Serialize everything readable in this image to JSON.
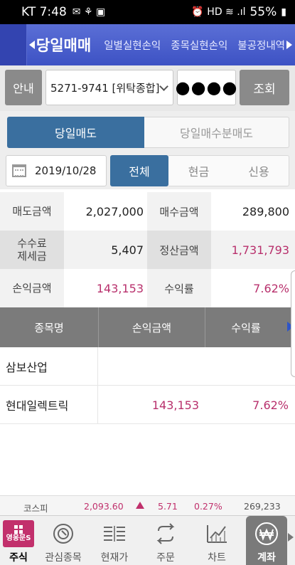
{
  "status_bar": {
    "carrier_time": "KT 7:48",
    "battery": "55%"
  },
  "header": {
    "tabs": [
      {
        "label": "당일매매",
        "active": true
      },
      {
        "label": "일별실현손익",
        "active": false
      },
      {
        "label": "종목실현손익",
        "active": false
      },
      {
        "label": "불공정내역",
        "active": false
      }
    ]
  },
  "account": {
    "guide_label": "안내",
    "account_value": "5271-9741 [위탁종합]",
    "password_mask": "●●●●",
    "query_label": "조회"
  },
  "sell_tabs": {
    "active": "당일매도",
    "inactive": "당일매수분매도"
  },
  "filter": {
    "date": "2019/10/28",
    "types": [
      "전체",
      "현금",
      "신용"
    ],
    "selected_type": "전체"
  },
  "summary": {
    "sell_amount_label": "매도금액",
    "sell_amount": "2,027,000",
    "buy_amount_label": "매수금액",
    "buy_amount": "289,800",
    "fee_tax_label": "수수료\n제세금",
    "fee_tax": "5,407",
    "settle_amount_label": "정산금액",
    "settle_amount": "1,731,793",
    "pnl_amount_label": "손익금액",
    "pnl_amount": "143,153",
    "return_rate_label": "수익률",
    "return_rate": "7.62%"
  },
  "table": {
    "headers": [
      "종목명",
      "손익금액",
      "수익률"
    ],
    "rows": [
      {
        "name": "삼보산업",
        "pnl": "",
        "rate": ""
      },
      {
        "name": "현대일렉트릭",
        "pnl": "143,153",
        "rate": "7.62%"
      }
    ]
  },
  "ticker": {
    "index_name": "코스피",
    "index_value": "2,093.60",
    "change": "5.71",
    "change_pct": "0.27%",
    "volume": "269,233"
  },
  "bottom_nav": {
    "home_label": "주식",
    "home_logo_text": "영웅문S",
    "items": [
      "관심종목",
      "현재가",
      "주문",
      "차트",
      "계좌"
    ],
    "active": "계좌"
  },
  "colors": {
    "header_blue": "#3d52c4",
    "tab_blue": "#3a6f9f",
    "positive_pink": "#b8306c",
    "brand_magenta": "#c2306c"
  }
}
